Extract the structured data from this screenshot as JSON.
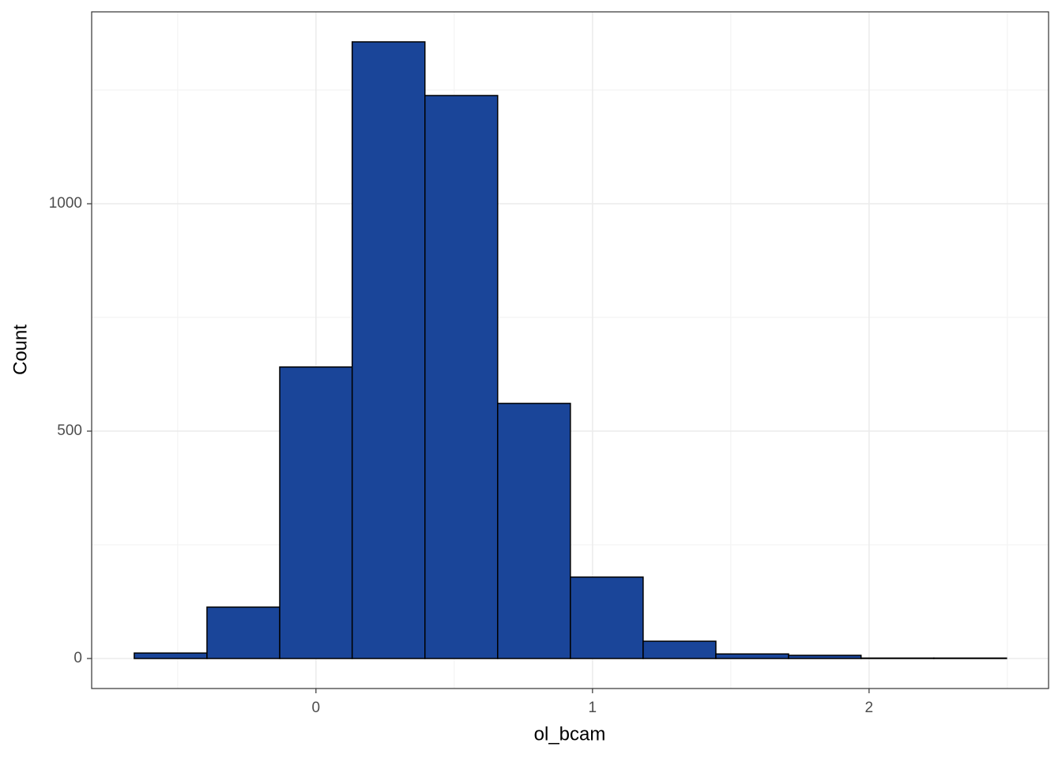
{
  "chart_data": {
    "type": "histogram",
    "x_label": "ol_bcam",
    "y_label": "Count",
    "bins": [
      -0.657,
      -0.394,
      -0.131,
      0.131,
      0.394,
      0.657,
      0.92,
      1.183,
      1.446,
      1.709,
      1.971,
      2.234,
      2.497
    ],
    "values": [
      12,
      113,
      641,
      1356,
      1238,
      561,
      179,
      38,
      10,
      7,
      1,
      1
    ],
    "color": "#1a4599",
    "edge_color": "#000000",
    "xlim": [
      -0.811,
      2.649
    ],
    "xticks": [
      0,
      1,
      2
    ],
    "ylim": [
      -66,
      1422
    ],
    "yticks": [
      0,
      500,
      1000
    ],
    "x_minor_grid": [
      -0.5,
      0.5,
      1.5,
      2.5
    ],
    "y_minor_grid": [
      250,
      750,
      1250
    ],
    "grid": true
  }
}
